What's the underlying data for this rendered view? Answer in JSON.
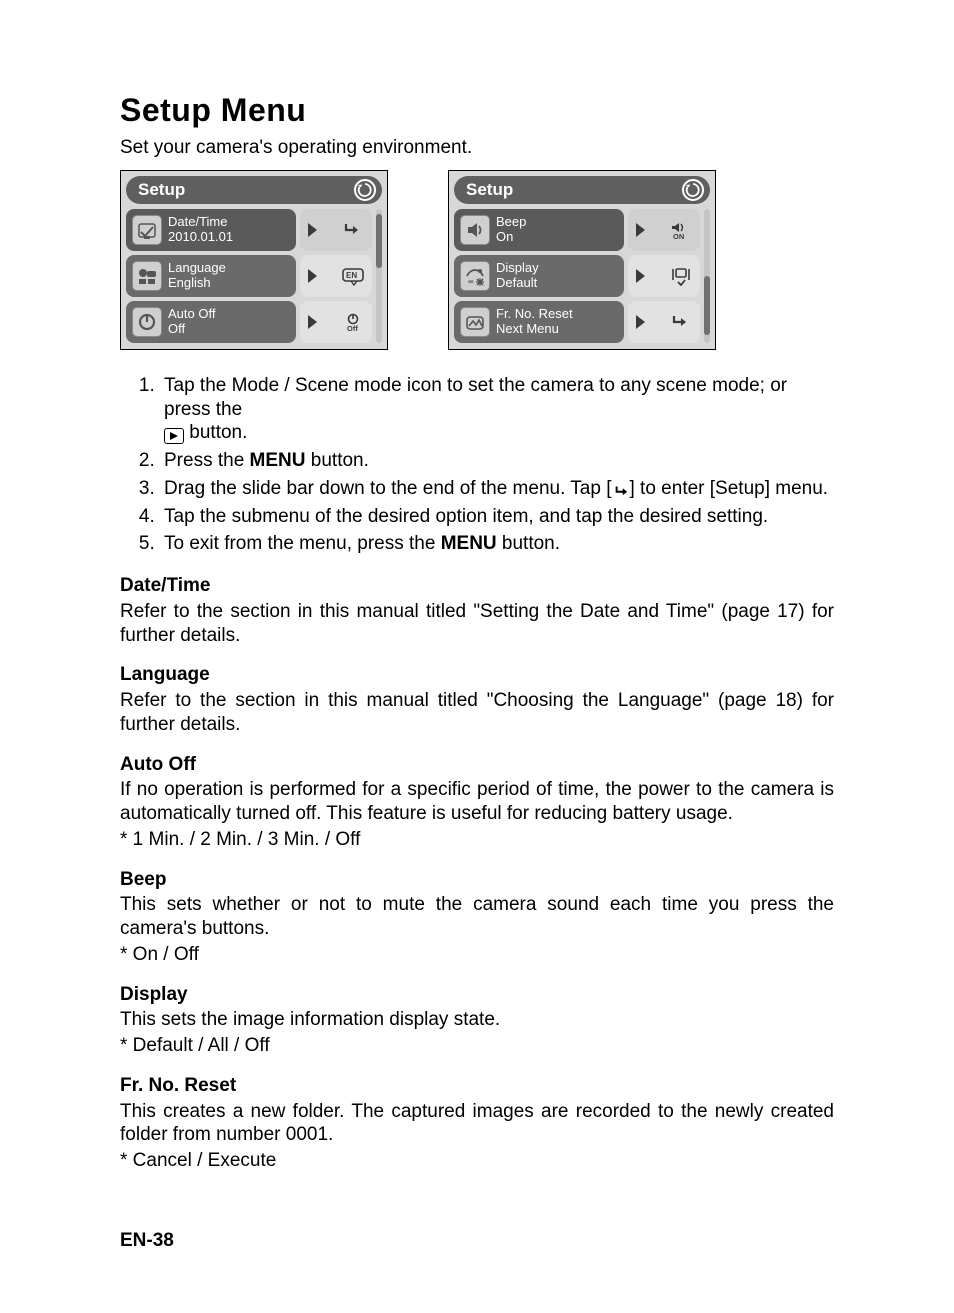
{
  "title": "Setup Menu",
  "subtitle": "Set your camera's operating environment.",
  "screens": {
    "header_label": "Setup",
    "left": {
      "scroll": {
        "top_pct": 4,
        "height_pct": 40
      },
      "rows": [
        {
          "name": "date-time",
          "l1": "Date/Time",
          "l2": "2010.01.01",
          "mini": "enter"
        },
        {
          "name": "language",
          "l1": "Language",
          "l2": "English",
          "mini": "en"
        },
        {
          "name": "auto-off",
          "l1": "Auto Off",
          "l2": "Off",
          "mini": "power-off"
        }
      ]
    },
    "right": {
      "scroll": {
        "top_pct": 50,
        "height_pct": 44
      },
      "rows": [
        {
          "name": "beep",
          "l1": "Beep",
          "l2": "On",
          "mini": "speaker-on"
        },
        {
          "name": "display",
          "l1": "Display",
          "l2": "Default",
          "mini": "display"
        },
        {
          "name": "fr-reset",
          "l1": "Fr. No. Reset",
          "l2": "Next Menu",
          "mini": "enter"
        }
      ]
    }
  },
  "steps": {
    "s1a": "Tap the Mode / Scene  mode icon to set the camera to any scene mode; or press the ",
    "s1b": " button.",
    "s2a": "Press the ",
    "s2b": "MENU",
    "s2c": " button.",
    "s3a": "Drag the slide bar down to the end of the menu. Tap [",
    "s3b": "] to enter [Setup] menu.",
    "s4": "Tap the submenu of the desired option item, and tap the desired setting.",
    "s5a": "To exit from the menu, press the ",
    "s5b": "MENU",
    "s5c": " button."
  },
  "sections": [
    {
      "name": "date-time",
      "title": "Date/Time",
      "body": "Refer to the section in this manual titled \"Setting the Date and Time\" (page 17) for further details.",
      "opts": ""
    },
    {
      "name": "language",
      "title": "Language",
      "body": "Refer to the section in this manual titled \"Choosing the Language\" (page 18) for further details.",
      "opts": ""
    },
    {
      "name": "auto-off",
      "title": "Auto Off",
      "body": "If no operation is performed for a specific period of time, the power to the camera is automatically turned off. This feature is useful for reducing battery usage.",
      "opts": "* 1 Min. / 2 Min. / 3 Min. / Off"
    },
    {
      "name": "beep",
      "title": "Beep",
      "body": "This sets whether or not to mute the camera sound each time you press the camera's buttons.",
      "opts": "* On / Off"
    },
    {
      "name": "display",
      "title": "Display",
      "body": "This sets the image information display state.",
      "opts": "* Default / All / Off"
    },
    {
      "name": "fr-reset",
      "title": "Fr. No. Reset",
      "body": "This creates a new folder. The captured images are recorded to the newly created folder from number 0001.",
      "opts": "* Cancel / Execute"
    }
  ],
  "footer": "EN-38",
  "colors": {
    "screen_bg": "#d8d8d8",
    "header_bg": "#5f5f5f",
    "row_left_bg": "#6a6a6a",
    "row_right_bg": "#e2e2e2",
    "text_white": "#ffffff",
    "text_black": "#000000"
  }
}
